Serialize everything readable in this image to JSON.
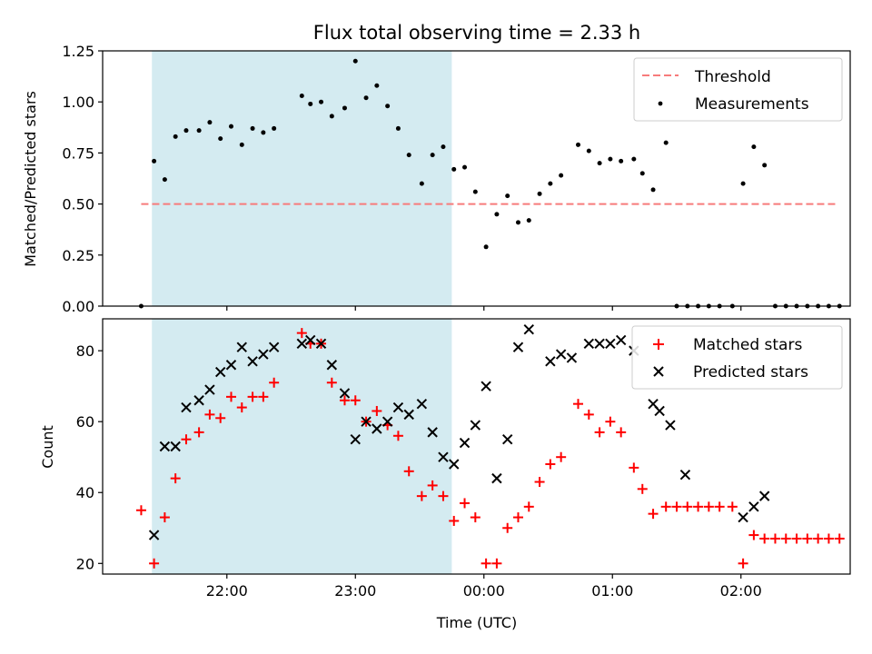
{
  "chart_data": {
    "title": "Flux total observing time = 2.33 h",
    "type": "scatter",
    "xlabel": "Time (UTC)",
    "x_tick_labels": [
      "22:00",
      "23:00",
      "00:00",
      "01:00",
      "02:00"
    ],
    "shaded_interval": {
      "start": "21:25",
      "end": "23:45",
      "color": "#d4ebf1"
    },
    "panels": [
      {
        "ylabel": "Matched/Predicted stars",
        "ylim": [
          0,
          1.25
        ],
        "yticks": [
          "0.00",
          "0.25",
          "0.50",
          "0.75",
          "1.00",
          "1.25"
        ],
        "legend": "top-right",
        "threshold": {
          "name": "Threshold",
          "value": 0.5,
          "x_start": "21:20",
          "x_end": "02:45",
          "color": "#f77b7b"
        },
        "series": [
          {
            "name": "Measurements",
            "color": "#000000",
            "points": [
              [
                "21:20",
                0.0
              ],
              [
                "21:26",
                0.71
              ],
              [
                "21:31",
                0.62
              ],
              [
                "21:36",
                0.83
              ],
              [
                "21:41",
                0.86
              ],
              [
                "21:47",
                0.86
              ],
              [
                "21:52",
                0.9
              ],
              [
                "21:57",
                0.82
              ],
              [
                "22:02",
                0.88
              ],
              [
                "22:07",
                0.79
              ],
              [
                "22:12",
                0.87
              ],
              [
                "22:17",
                0.85
              ],
              [
                "22:22",
                0.87
              ],
              [
                "22:35",
                1.03
              ],
              [
                "22:39",
                0.99
              ],
              [
                "22:44",
                1.0
              ],
              [
                "22:49",
                0.93
              ],
              [
                "22:55",
                0.97
              ],
              [
                "23:00",
                1.2
              ],
              [
                "23:05",
                1.02
              ],
              [
                "23:10",
                1.08
              ],
              [
                "23:15",
                0.98
              ],
              [
                "23:20",
                0.87
              ],
              [
                "23:25",
                0.74
              ],
              [
                "23:31",
                0.6
              ],
              [
                "23:36",
                0.74
              ],
              [
                "23:41",
                0.78
              ],
              [
                "23:46",
                0.67
              ],
              [
                "23:51",
                0.68
              ],
              [
                "23:56",
                0.56
              ],
              [
                "00:01",
                0.29
              ],
              [
                "00:06",
                0.45
              ],
              [
                "00:11",
                0.54
              ],
              [
                "00:16",
                0.41
              ],
              [
                "00:21",
                0.42
              ],
              [
                "00:26",
                0.55
              ],
              [
                "00:31",
                0.6
              ],
              [
                "00:36",
                0.64
              ],
              [
                "00:44",
                0.79
              ],
              [
                "00:49",
                0.76
              ],
              [
                "00:54",
                0.7
              ],
              [
                "00:59",
                0.72
              ],
              [
                "01:04",
                0.71
              ],
              [
                "01:10",
                0.72
              ],
              [
                "01:14",
                0.65
              ],
              [
                "01:19",
                0.57
              ],
              [
                "01:25",
                0.8
              ],
              [
                "01:30",
                0.0
              ],
              [
                "01:35",
                0.0
              ],
              [
                "01:40",
                0.0
              ],
              [
                "01:45",
                0.0
              ],
              [
                "01:50",
                0.0
              ],
              [
                "01:56",
                0.0
              ],
              [
                "02:01",
                0.6
              ],
              [
                "02:06",
                0.78
              ],
              [
                "02:11",
                0.69
              ],
              [
                "02:16",
                0.0
              ],
              [
                "02:21",
                0.0
              ],
              [
                "02:26",
                0.0
              ],
              [
                "02:31",
                0.0
              ],
              [
                "02:36",
                0.0
              ],
              [
                "02:41",
                0.0
              ],
              [
                "02:46",
                0.0
              ]
            ]
          }
        ]
      },
      {
        "ylabel": "Count",
        "ylim": [
          17,
          89
        ],
        "yticks": [
          "20",
          "40",
          "60",
          "80"
        ],
        "legend": "top-right",
        "series": [
          {
            "name": "Matched stars",
            "marker": "plus",
            "color": "#ff0000",
            "points": [
              [
                "21:20",
                35
              ],
              [
                "21:26",
                20
              ],
              [
                "21:31",
                33
              ],
              [
                "21:36",
                44
              ],
              [
                "21:41",
                55
              ],
              [
                "21:47",
                57
              ],
              [
                "21:52",
                62
              ],
              [
                "21:57",
                61
              ],
              [
                "22:02",
                67
              ],
              [
                "22:07",
                64
              ],
              [
                "22:12",
                67
              ],
              [
                "22:17",
                67
              ],
              [
                "22:22",
                71
              ],
              [
                "22:35",
                85
              ],
              [
                "22:39",
                82
              ],
              [
                "22:44",
                82
              ],
              [
                "22:49",
                71
              ],
              [
                "22:55",
                66
              ],
              [
                "23:00",
                66
              ],
              [
                "23:05",
                60
              ],
              [
                "23:10",
                63
              ],
              [
                "23:15",
                59
              ],
              [
                "23:20",
                56
              ],
              [
                "23:25",
                46
              ],
              [
                "23:31",
                39
              ],
              [
                "23:36",
                42
              ],
              [
                "23:41",
                39
              ],
              [
                "23:46",
                32
              ],
              [
                "23:51",
                37
              ],
              [
                "23:56",
                33
              ],
              [
                "00:01",
                20
              ],
              [
                "00:06",
                20
              ],
              [
                "00:11",
                30
              ],
              [
                "00:16",
                33
              ],
              [
                "00:21",
                36
              ],
              [
                "00:26",
                43
              ],
              [
                "00:31",
                48
              ],
              [
                "00:36",
                50
              ],
              [
                "00:44",
                65
              ],
              [
                "00:49",
                62
              ],
              [
                "00:54",
                57
              ],
              [
                "00:59",
                60
              ],
              [
                "01:04",
                57
              ],
              [
                "01:10",
                47
              ],
              [
                "01:14",
                41
              ],
              [
                "01:19",
                34
              ],
              [
                "01:25",
                36
              ],
              [
                "01:30",
                36
              ],
              [
                "01:35",
                36
              ],
              [
                "01:40",
                36
              ],
              [
                "01:45",
                36
              ],
              [
                "01:50",
                36
              ],
              [
                "01:56",
                36
              ],
              [
                "02:01",
                20
              ],
              [
                "02:06",
                28
              ],
              [
                "02:11",
                27
              ],
              [
                "02:16",
                27
              ],
              [
                "02:21",
                27
              ],
              [
                "02:26",
                27
              ],
              [
                "02:31",
                27
              ],
              [
                "02:36",
                27
              ],
              [
                "02:41",
                27
              ],
              [
                "02:46",
                27
              ]
            ]
          },
          {
            "name": "Predicted stars",
            "marker": "x",
            "color": "#000000",
            "points": [
              [
                "21:26",
                28
              ],
              [
                "21:31",
                53
              ],
              [
                "21:36",
                53
              ],
              [
                "21:41",
                64
              ],
              [
                "21:47",
                66
              ],
              [
                "21:52",
                69
              ],
              [
                "21:57",
                74
              ],
              [
                "22:02",
                76
              ],
              [
                "22:07",
                81
              ],
              [
                "22:12",
                77
              ],
              [
                "22:17",
                79
              ],
              [
                "22:22",
                81
              ],
              [
                "22:35",
                82
              ],
              [
                "22:39",
                83
              ],
              [
                "22:44",
                82
              ],
              [
                "22:49",
                76
              ],
              [
                "22:55",
                68
              ],
              [
                "23:00",
                55
              ],
              [
                "23:05",
                60
              ],
              [
                "23:10",
                58
              ],
              [
                "23:15",
                60
              ],
              [
                "23:20",
                64
              ],
              [
                "23:25",
                62
              ],
              [
                "23:31",
                65
              ],
              [
                "23:36",
                57
              ],
              [
                "23:41",
                50
              ],
              [
                "23:46",
                48
              ],
              [
                "23:51",
                54
              ],
              [
                "23:56",
                59
              ],
              [
                "00:01",
                70
              ],
              [
                "00:06",
                44
              ],
              [
                "00:11",
                55
              ],
              [
                "00:16",
                81
              ],
              [
                "00:21",
                86
              ],
              [
                "00:31",
                77
              ],
              [
                "00:36",
                79
              ],
              [
                "00:41",
                78
              ],
              [
                "00:49",
                82
              ],
              [
                "00:54",
                82
              ],
              [
                "00:59",
                82
              ],
              [
                "01:04",
                83
              ],
              [
                "01:10",
                80
              ],
              [
                "01:19",
                65
              ],
              [
                "01:22",
                63
              ],
              [
                "01:27",
                59
              ],
              [
                "01:34",
                45
              ],
              [
                "02:01",
                33
              ],
              [
                "02:06",
                36
              ],
              [
                "02:11",
                39
              ]
            ]
          }
        ]
      }
    ]
  }
}
